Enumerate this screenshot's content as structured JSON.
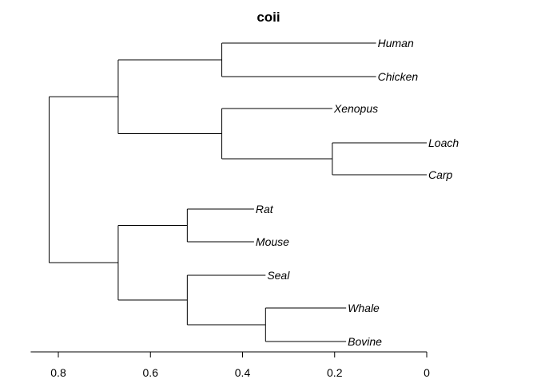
{
  "chart_data": {
    "type": "dendrogram",
    "title": "coii",
    "orientation": "horizontal",
    "x_axis": {
      "ticks": [
        0.8,
        0.6,
        0.4,
        0.2,
        0
      ],
      "tick_labels": [
        "0.8",
        "0.6",
        "0.4",
        "0.2",
        "0"
      ],
      "range": [
        0.86,
        0
      ]
    },
    "leaves": [
      {
        "id": "human",
        "label": "Human",
        "height": 0.11
      },
      {
        "id": "chicken",
        "label": "Chicken",
        "height": 0.11
      },
      {
        "id": "xenopus",
        "label": "Xenopus",
        "height": 0.205
      },
      {
        "id": "loach",
        "label": "Loach",
        "height": 0.0
      },
      {
        "id": "carp",
        "label": "Carp",
        "height": 0.0
      },
      {
        "id": "rat",
        "label": "Rat",
        "height": 0.375
      },
      {
        "id": "mouse",
        "label": "Mouse",
        "height": 0.375
      },
      {
        "id": "seal",
        "label": "Seal",
        "height": 0.35
      },
      {
        "id": "whale",
        "label": "Whale",
        "height": 0.175
      },
      {
        "id": "bovine",
        "label": "Bovine",
        "height": 0.175
      }
    ],
    "merges": [
      {
        "id": "loach-carp",
        "children": [
          "loach",
          "carp"
        ],
        "height": 0.205
      },
      {
        "id": "xenopus-fish",
        "children": [
          "xenopus",
          "loach-carp"
        ],
        "height": 0.445
      },
      {
        "id": "human-chicken",
        "children": [
          "human",
          "chicken"
        ],
        "height": 0.445
      },
      {
        "id": "upper",
        "children": [
          "human-chicken",
          "xenopus-fish"
        ],
        "height": 0.67
      },
      {
        "id": "rat-mouse",
        "children": [
          "rat",
          "mouse"
        ],
        "height": 0.52
      },
      {
        "id": "whale-bovine",
        "children": [
          "whale",
          "bovine"
        ],
        "height": 0.35
      },
      {
        "id": "seal-group",
        "children": [
          "seal",
          "whale-bovine"
        ],
        "height": 0.52
      },
      {
        "id": "lower",
        "children": [
          "rat-mouse",
          "seal-group"
        ],
        "height": 0.67
      },
      {
        "id": "root",
        "children": [
          "upper",
          "lower"
        ],
        "height": 0.82
      }
    ]
  }
}
